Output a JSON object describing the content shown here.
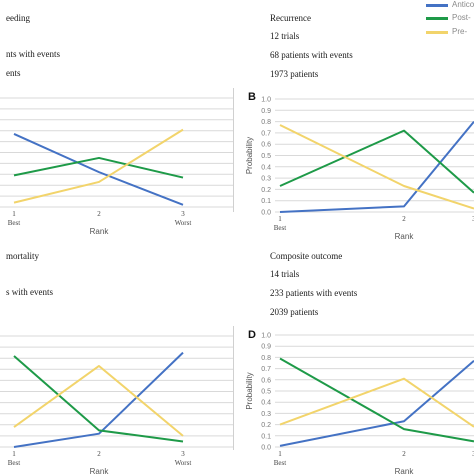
{
  "legend": [
    {
      "label": "Antico",
      "color": "#4472c4"
    },
    {
      "label": "Post-",
      "color": "#1e9a48"
    },
    {
      "label": "Pre-",
      "color": "#f2d46b"
    }
  ],
  "panels": [
    {
      "info": [
        "eeding",
        "nts with events",
        "ents"
      ]
    },
    {
      "info": [
        "Recurrence",
        "12 trials",
        "68 patients with events",
        "1973 patients"
      ]
    },
    {
      "info": [
        " mortality",
        "s with events"
      ]
    },
    {
      "info": [
        "Composite outcome",
        "14 trials",
        "233 patients with events",
        "2039 patients"
      ]
    }
  ],
  "chart_data": [
    {
      "type": "line",
      "panel": "A",
      "title": "",
      "xlabel": "Rank",
      "ylabel": "",
      "x": [
        1,
        2,
        3
      ],
      "xtick_labels": [
        "1\nBest",
        "2",
        "3\nWorst"
      ],
      "ylim": [
        0,
        1
      ],
      "grid": true,
      "series": [
        {
          "name": "Antico",
          "values": [
            0.67,
            0.32,
            0.02
          ],
          "color": "#4472c4"
        },
        {
          "name": "Post-",
          "values": [
            0.29,
            0.45,
            0.27
          ],
          "color": "#1e9a48"
        },
        {
          "name": "Pre-",
          "values": [
            0.04,
            0.23,
            0.71
          ],
          "color": "#f2d46b"
        }
      ]
    },
    {
      "type": "line",
      "panel": "B",
      "title": "",
      "xlabel": "Rank",
      "ylabel": "Probability",
      "x": [
        1,
        2,
        3
      ],
      "xtick_labels": [
        "1\nBest",
        "2",
        "3"
      ],
      "ylim": [
        0,
        1
      ],
      "yticks": [
        "0.0",
        "0.1",
        "0.2",
        "0.3",
        "0.4",
        "0.5",
        "0.6",
        "0.7",
        "0.8",
        "0.9",
        "1.0"
      ],
      "grid": true,
      "series": [
        {
          "name": "Antico",
          "values": [
            0.0,
            0.05,
            0.8
          ],
          "color": "#4472c4"
        },
        {
          "name": "Post-",
          "values": [
            0.23,
            0.72,
            0.17
          ],
          "color": "#1e9a48"
        },
        {
          "name": "Pre-",
          "values": [
            0.77,
            0.23,
            0.03
          ],
          "color": "#f2d46b"
        }
      ]
    },
    {
      "type": "line",
      "panel": "C",
      "title": "",
      "xlabel": "Rank",
      "ylabel": "",
      "x": [
        1,
        2,
        3
      ],
      "xtick_labels": [
        "1\nBest",
        "2",
        "3\nWorst"
      ],
      "ylim": [
        0,
        1
      ],
      "grid": true,
      "series": [
        {
          "name": "Antico",
          "values": [
            0.0,
            0.12,
            0.85
          ],
          "color": "#4472c4"
        },
        {
          "name": "Post-",
          "values": [
            0.82,
            0.15,
            0.05
          ],
          "color": "#1e9a48"
        },
        {
          "name": "Pre-",
          "values": [
            0.18,
            0.73,
            0.1
          ],
          "color": "#f2d46b"
        }
      ]
    },
    {
      "type": "line",
      "panel": "D",
      "title": "",
      "xlabel": "Rank",
      "ylabel": "Probability",
      "x": [
        1,
        2,
        3
      ],
      "xtick_labels": [
        "1\nBest",
        "2",
        "3"
      ],
      "ylim": [
        0,
        1
      ],
      "yticks": [
        "0.0",
        "0.1",
        "0.2",
        "0.3",
        "0.4",
        "0.5",
        "0.6",
        "0.7",
        "0.8",
        "0.9",
        "1.0"
      ],
      "grid": true,
      "series": [
        {
          "name": "Antico",
          "values": [
            0.01,
            0.23,
            0.77
          ],
          "color": "#4472c4"
        },
        {
          "name": "Post-",
          "values": [
            0.79,
            0.16,
            0.05
          ],
          "color": "#1e9a48"
        },
        {
          "name": "Pre-",
          "values": [
            0.2,
            0.61,
            0.18
          ],
          "color": "#f2d46b"
        }
      ]
    }
  ]
}
